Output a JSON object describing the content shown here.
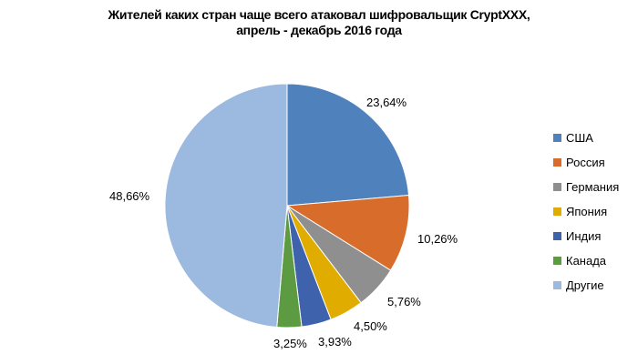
{
  "chart_data": {
    "type": "pie",
    "title_lines": [
      "Жителей каких стран чаще всего атаковал шифровальщик CryptXXX,",
      "апрель - декабрь 2016 года"
    ],
    "categories": [
      "США",
      "Россия",
      "Германия",
      "Япония",
      "Индия",
      "Канада",
      "Другие"
    ],
    "values": [
      23.64,
      10.26,
      5.76,
      4.5,
      3.93,
      3.25,
      48.66
    ],
    "data_labels": [
      "23,64%",
      "10,26%",
      "5,76%",
      "4,50%",
      "3,93%",
      "3,25%",
      "48,66%"
    ],
    "colors": [
      "#4f81bd",
      "#d86c2b",
      "#8f8f8f",
      "#e0ac00",
      "#3e62ac",
      "#5d9b42",
      "#9cbae0"
    ],
    "legend_position": "right",
    "start_angle": "top",
    "direction": "clockwise"
  }
}
